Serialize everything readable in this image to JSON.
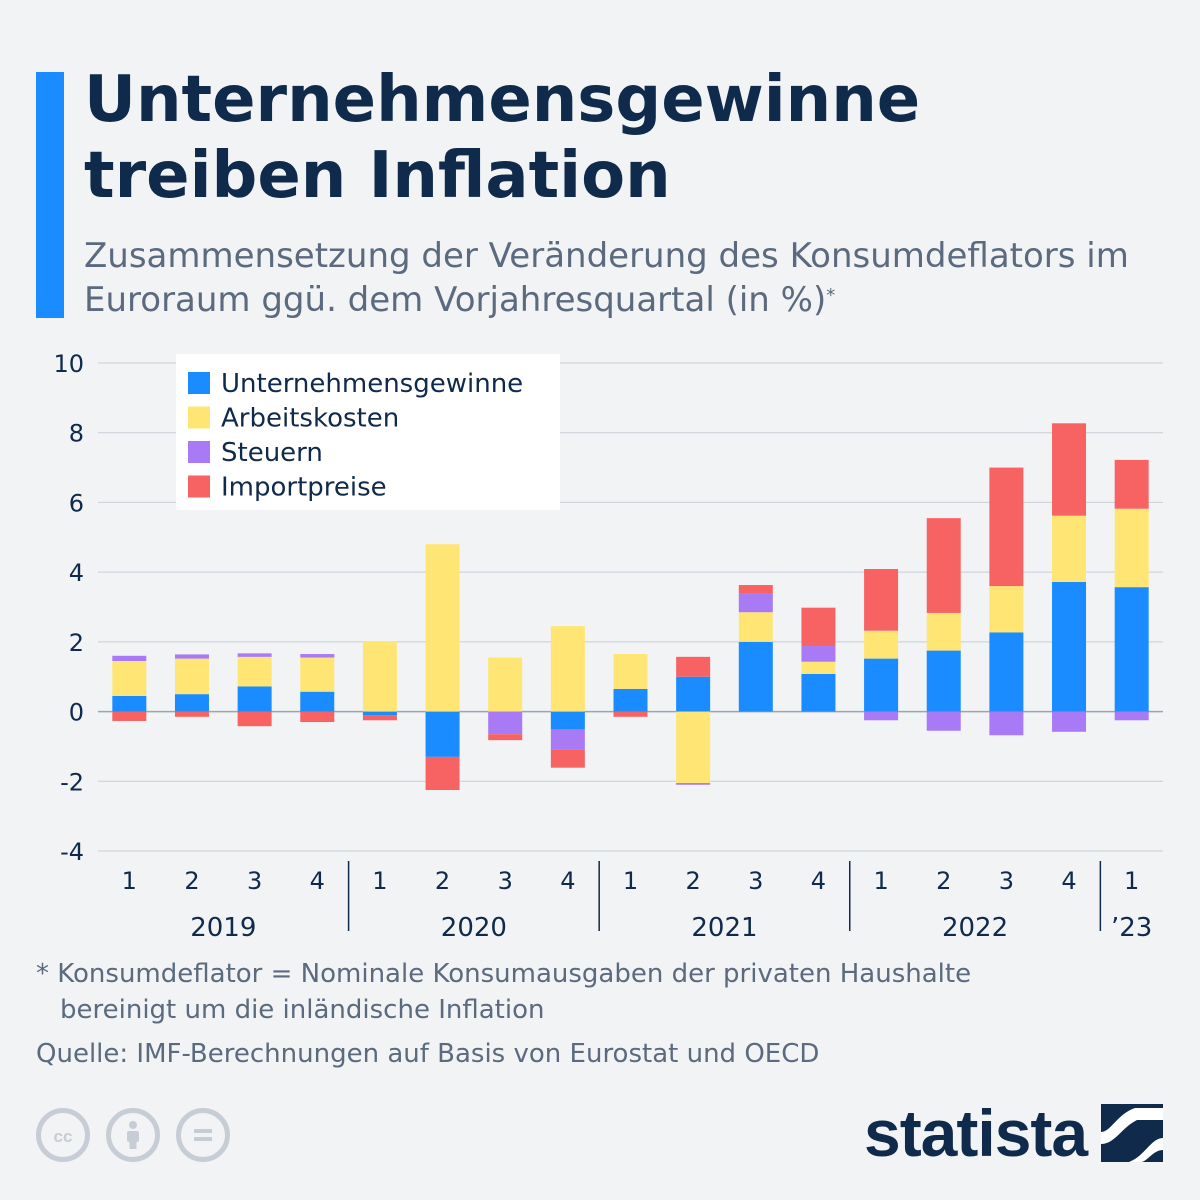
{
  "header": {
    "title": "Unternehmensgewinne treiben Inflation",
    "subtitle": "Zusammensetzung der Veränderung des Konsumdeflators im Euroraum ggü. dem Vorjahresquartal (in %)",
    "subtitle_mark": "*"
  },
  "chart_data": {
    "type": "bar",
    "stacked": true,
    "title": "Unternehmensgewinne treiben Inflation",
    "xlabel": "",
    "ylabel": "",
    "ylim": [
      -4,
      10
    ],
    "yticks": [
      -4,
      -2,
      0,
      2,
      4,
      6,
      8,
      10
    ],
    "ytick_labels": [
      "-4",
      "-2",
      "0",
      "2",
      "4",
      "6",
      "8",
      "10"
    ],
    "grid": true,
    "legend_position": "top-left",
    "categories": [
      "1",
      "2",
      "3",
      "4",
      "1",
      "2",
      "3",
      "4",
      "1",
      "2",
      "3",
      "4",
      "1",
      "2",
      "3",
      "4",
      "1"
    ],
    "groups": [
      {
        "label": "2019",
        "start": 0,
        "end": 3
      },
      {
        "label": "2020",
        "start": 4,
        "end": 7
      },
      {
        "label": "2021",
        "start": 8,
        "end": 11
      },
      {
        "label": "2022",
        "start": 12,
        "end": 15
      },
      {
        "label": "’23",
        "start": 16,
        "end": 16
      }
    ],
    "series": [
      {
        "name": "Unternehmensgewinne",
        "color": "#1a8cff",
        "values": [
          0.45,
          0.5,
          0.72,
          0.57,
          -0.1,
          -1.3,
          0,
          -0.5,
          0.65,
          1.0,
          2.0,
          1.08,
          1.52,
          1.75,
          2.27,
          3.72,
          3.57
        ]
      },
      {
        "name": "Arbeitskosten",
        "color": "#ffe574",
        "values": [
          1.0,
          1.02,
          0.85,
          0.98,
          2.02,
          4.8,
          1.55,
          2.45,
          1.0,
          -2.05,
          0.85,
          0.35,
          0.8,
          1.08,
          1.33,
          1.9,
          2.25
        ]
      },
      {
        "name": "Steuern",
        "color": "#a87af5",
        "values": [
          0.15,
          0.12,
          0.1,
          0.1,
          0,
          0,
          -0.65,
          -0.58,
          0,
          -0.05,
          0.55,
          0.45,
          -0.25,
          -0.55,
          -0.68,
          -0.58,
          -0.25
        ]
      },
      {
        "name": "Importpreise",
        "color": "#f76363",
        "values": [
          -0.27,
          -0.15,
          -0.42,
          -0.3,
          -0.15,
          -0.95,
          -0.17,
          -0.53,
          -0.15,
          0.57,
          0.23,
          1.1,
          1.77,
          2.72,
          3.4,
          2.65,
          1.4
        ]
      }
    ]
  },
  "footnote": {
    "line1": "* Konsumdeflator = Nominale Konsumausgaben der privaten Haushalte",
    "line2": "bereinigt um die inländische Inflation"
  },
  "source": "Quelle: IMF-Berechnungen auf Basis von Eurostat und OECD",
  "branding": {
    "name": "statista",
    "icons": [
      "creative-commons-icon",
      "attribution-icon",
      "no-derivatives-icon"
    ]
  }
}
